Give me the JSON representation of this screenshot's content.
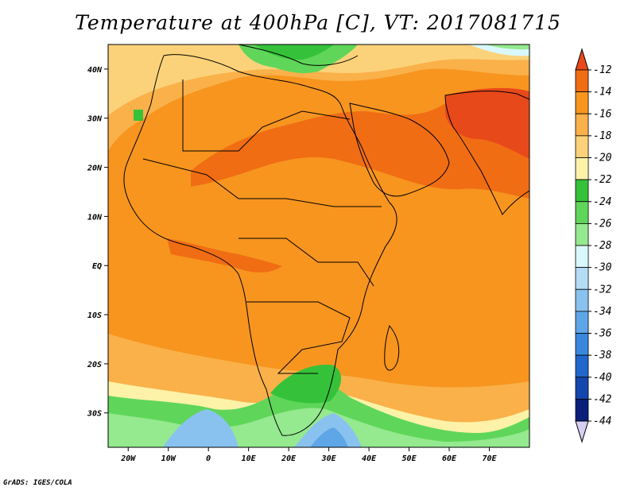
{
  "title": "Temperature at 400hPa [C], VT: 2017081715",
  "credit": "GrADS: IGES/COLA",
  "axes": {
    "lon_ticks": [
      "20W",
      "10W",
      "0",
      "10E",
      "20E",
      "30E",
      "40E",
      "50E",
      "60E",
      "70E"
    ],
    "lat_ticks": [
      "40N",
      "30N",
      "20N",
      "10N",
      "EQ",
      "10S",
      "20S",
      "30S"
    ]
  },
  "colorbar": {
    "levels": [
      "-12",
      "-14",
      "-16",
      "-18",
      "-20",
      "-22",
      "-24",
      "-26",
      "-28",
      "-30",
      "-32",
      "-34",
      "-36",
      "-38",
      "-40",
      "-42",
      "-44"
    ],
    "colors": [
      "#e8491a",
      "#f06d14",
      "#f7951f",
      "#fab14a",
      "#fbd27a",
      "#fdf2a8",
      "#35c23a",
      "#5fd65a",
      "#95e98f",
      "#d9f8fb",
      "#b5dcf5",
      "#8ac2ef",
      "#5fa6e8",
      "#3988de",
      "#2067cc",
      "#1447ad",
      "#0a1f7a",
      "#d7d0f2"
    ]
  }
}
